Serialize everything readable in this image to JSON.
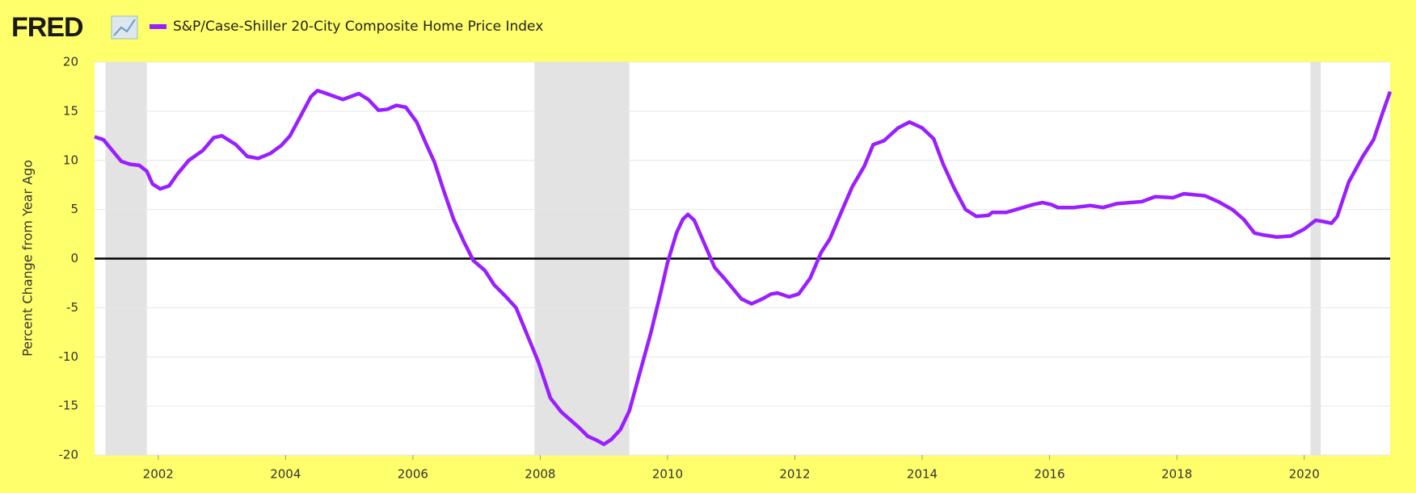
{
  "logo": "FRED",
  "chart_data": {
    "type": "line",
    "y_label": "Percent Change from Year Ago",
    "series": [
      {
        "name": "S&P/Case-Shiller 20-City Composite Home Price Index",
        "color": "#9a1fff",
        "x": [
          2001.0,
          2001.14,
          2001.28,
          2001.42,
          2001.56,
          2001.7,
          2001.82,
          2001.91,
          2002.03,
          2002.17,
          2002.3,
          2002.48,
          2002.7,
          2002.87,
          2003.0,
          2003.22,
          2003.4,
          2003.57,
          2003.76,
          2003.93,
          2004.07,
          2004.26,
          2004.4,
          2004.5,
          2004.6,
          2004.9,
          2005.15,
          2005.3,
          2005.46,
          2005.6,
          2005.74,
          2005.89,
          2006.06,
          2006.2,
          2006.34,
          2006.48,
          2006.64,
          2006.81,
          2006.95,
          2007.13,
          2007.28,
          2007.45,
          2007.62,
          2007.76,
          2007.97,
          2008.16,
          2008.33,
          2008.47,
          2008.61,
          2008.75,
          2008.89,
          2009.0,
          2009.12,
          2009.26,
          2009.4,
          2009.57,
          2009.74,
          2009.89,
          2010.0,
          2010.14,
          2010.24,
          2010.32,
          2010.42,
          2010.6,
          2010.74,
          2010.89,
          2011.02,
          2011.16,
          2011.32,
          2011.49,
          2011.63,
          2011.73,
          2011.91,
          2012.06,
          2012.24,
          2012.41,
          2012.55,
          2012.72,
          2012.9,
          2013.09,
          2013.23,
          2013.4,
          2013.62,
          2013.8,
          2014.0,
          2014.18,
          2014.33,
          2014.5,
          2014.68,
          2014.85,
          2015.04,
          2015.1,
          2015.32,
          2015.53,
          2015.74,
          2015.89,
          2016.03,
          2016.13,
          2016.38,
          2016.64,
          2016.84,
          2017.06,
          2017.26,
          2017.45,
          2017.66,
          2017.94,
          2018.11,
          2018.44,
          2018.65,
          2018.87,
          2019.05,
          2019.22,
          2019.36,
          2019.57,
          2019.79,
          2020.0,
          2020.18,
          2020.28,
          2020.43,
          2020.52,
          2020.7,
          2020.92,
          2021.09,
          2021.23,
          2021.35
        ],
        "values": [
          12.4,
          12.1,
          11.0,
          9.9,
          9.6,
          9.5,
          8.9,
          7.6,
          7.1,
          7.4,
          8.6,
          10.0,
          11.0,
          12.3,
          12.5,
          11.6,
          10.4,
          10.2,
          10.7,
          11.5,
          12.5,
          14.8,
          16.5,
          17.1,
          16.9,
          16.2,
          16.8,
          16.2,
          15.1,
          15.2,
          15.6,
          15.4,
          13.9,
          11.8,
          9.8,
          7.0,
          4.0,
          1.6,
          -0.2,
          -1.2,
          -2.7,
          -3.8,
          -5.0,
          -7.2,
          -10.5,
          -14.2,
          -15.6,
          -16.4,
          -17.2,
          -18.1,
          -18.5,
          -18.9,
          -18.4,
          -17.4,
          -15.5,
          -11.5,
          -7.5,
          -3.5,
          -0.4,
          2.6,
          4.0,
          4.5,
          3.9,
          1.2,
          -0.9,
          -2.0,
          -3.0,
          -4.1,
          -4.6,
          -4.1,
          -3.6,
          -3.5,
          -3.9,
          -3.6,
          -2.0,
          0.6,
          2.0,
          4.6,
          7.3,
          9.4,
          11.6,
          12.0,
          13.3,
          13.9,
          13.3,
          12.2,
          9.6,
          7.2,
          5.0,
          4.3,
          4.4,
          4.7,
          4.7,
          5.1,
          5.5,
          5.7,
          5.5,
          5.2,
          5.2,
          5.4,
          5.2,
          5.6,
          5.7,
          5.8,
          6.3,
          6.2,
          6.6,
          6.4,
          5.8,
          5.0,
          4.0,
          2.6,
          2.4,
          2.2,
          2.3,
          3.0,
          3.9,
          3.8,
          3.6,
          4.3,
          7.8,
          10.4,
          12.1,
          14.8,
          17.0
        ]
      }
    ],
    "recessions": [
      [
        2001.17,
        2001.82
      ],
      [
        2007.91,
        2009.4
      ],
      [
        2020.1,
        2020.26
      ]
    ],
    "recession_color": "#e3e3e3",
    "xlim": [
      2001.0,
      2021.35
    ],
    "xticks": [
      2002,
      2004,
      2006,
      2008,
      2010,
      2012,
      2014,
      2016,
      2018,
      2020
    ],
    "ylim": [
      -20,
      20
    ],
    "yticks": [
      -20,
      -15,
      -10,
      -5,
      0,
      5,
      10,
      15,
      20
    ],
    "grid": true
  }
}
